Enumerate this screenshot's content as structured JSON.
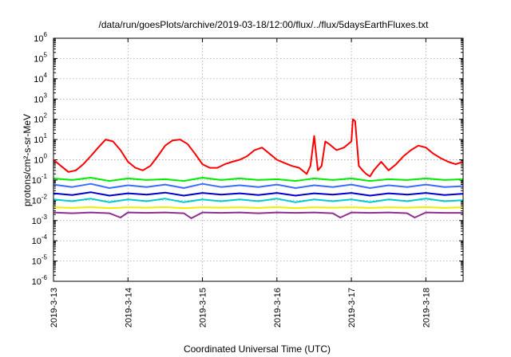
{
  "chart_data": {
    "type": "line",
    "title": "/data/run/goesPlots/archive/2019-03-18/12:00/flux/../flux/5daysEarthFluxes.txt",
    "xlabel": "Coordinated Universal Time (UTC)",
    "ylabel": "protons/cm²-s-sr-MeV",
    "yscale": "log",
    "ylim": [
      1e-06,
      1000000.0
    ],
    "xlim": [
      0,
      5.5
    ],
    "x_ticks": [
      {
        "x": 0,
        "label": "2019-3-13"
      },
      {
        "x": 1,
        "label": "2019-3-14"
      },
      {
        "x": 2,
        "label": "2019-3-15"
      },
      {
        "x": 3,
        "label": "2019-3-16"
      },
      {
        "x": 4,
        "label": "2019-3-17"
      },
      {
        "x": 5,
        "label": "2019-3-18"
      }
    ],
    "y_ticks": [
      {
        "exp": "-6"
      },
      {
        "exp": "-5"
      },
      {
        "exp": "-4"
      },
      {
        "exp": "-3"
      },
      {
        "exp": "-2"
      },
      {
        "exp": "-1"
      },
      {
        "exp": "0"
      },
      {
        "exp": "1"
      },
      {
        "exp": "2"
      },
      {
        "exp": "3"
      },
      {
        "exp": "4"
      },
      {
        "exp": "5"
      },
      {
        "exp": "6"
      }
    ],
    "y_tick_base": "10",
    "grid": true,
    "series": [
      {
        "color": "#ff0000",
        "x": [
          0,
          0.1,
          0.2,
          0.3,
          0.4,
          0.5,
          0.6,
          0.7,
          0.8,
          0.9,
          1.0,
          1.1,
          1.2,
          1.3,
          1.4,
          1.5,
          1.6,
          1.7,
          1.8,
          1.9,
          2.0,
          2.1,
          2.2,
          2.3,
          2.4,
          2.5,
          2.6,
          2.7,
          2.8,
          2.9,
          3.0,
          3.1,
          3.2,
          3.3,
          3.4,
          3.45,
          3.5,
          3.55,
          3.6,
          3.65,
          3.7,
          3.8,
          3.9,
          4.0,
          4.02,
          4.05,
          4.1,
          4.15,
          4.2,
          4.25,
          4.3,
          4.4,
          4.5,
          4.6,
          4.7,
          4.8,
          4.9,
          5.0,
          5.1,
          5.2,
          5.3,
          5.4,
          5.5
        ],
        "y": [
          1.0,
          0.5,
          0.25,
          0.3,
          0.6,
          1.5,
          4,
          10,
          8,
          3,
          0.8,
          0.4,
          0.3,
          0.5,
          1.5,
          5,
          9,
          10,
          6,
          2,
          0.6,
          0.4,
          0.4,
          0.6,
          0.8,
          1,
          1.5,
          3,
          4,
          2,
          1,
          0.7,
          0.5,
          0.4,
          0.2,
          0.5,
          15,
          0.3,
          0.5,
          8,
          6,
          3,
          4,
          8,
          100,
          80,
          0.5,
          0.3,
          0.2,
          0.15,
          0.3,
          0.8,
          0.3,
          0.6,
          1.5,
          3,
          5,
          4,
          2,
          1.2,
          0.8,
          0.6,
          0.8
        ]
      },
      {
        "color": "#00ee00",
        "x": [
          0,
          0.25,
          0.5,
          0.75,
          1.0,
          1.25,
          1.5,
          1.75,
          2.0,
          2.25,
          2.5,
          2.75,
          3.0,
          3.25,
          3.5,
          3.75,
          4.0,
          4.25,
          4.5,
          4.75,
          5.0,
          5.25,
          5.5
        ],
        "y": [
          0.12,
          0.1,
          0.13,
          0.09,
          0.12,
          0.1,
          0.11,
          0.09,
          0.13,
          0.1,
          0.12,
          0.1,
          0.11,
          0.09,
          0.12,
          0.1,
          0.12,
          0.09,
          0.11,
          0.1,
          0.12,
          0.1,
          0.11
        ]
      },
      {
        "color": "#3a6dff",
        "x": [
          0,
          0.25,
          0.5,
          0.75,
          1.0,
          1.25,
          1.5,
          1.75,
          2.0,
          2.25,
          2.5,
          2.75,
          3.0,
          3.25,
          3.5,
          3.75,
          4.0,
          4.25,
          4.5,
          4.75,
          5.0,
          5.25,
          5.5
        ],
        "y": [
          0.06,
          0.045,
          0.065,
          0.04,
          0.055,
          0.045,
          0.06,
          0.04,
          0.065,
          0.045,
          0.055,
          0.045,
          0.06,
          0.04,
          0.055,
          0.045,
          0.06,
          0.04,
          0.055,
          0.045,
          0.06,
          0.045,
          0.05
        ]
      },
      {
        "color": "#0000cc",
        "x": [
          0,
          0.25,
          0.5,
          0.75,
          1.0,
          1.25,
          1.5,
          1.75,
          2.0,
          2.25,
          2.5,
          2.75,
          3.0,
          3.25,
          3.5,
          3.75,
          4.0,
          4.25,
          4.5,
          4.75,
          5.0,
          5.25,
          5.5
        ],
        "y": [
          0.022,
          0.018,
          0.025,
          0.017,
          0.022,
          0.019,
          0.024,
          0.017,
          0.023,
          0.019,
          0.022,
          0.018,
          0.023,
          0.017,
          0.022,
          0.019,
          0.023,
          0.017,
          0.022,
          0.019,
          0.023,
          0.018,
          0.021
        ]
      },
      {
        "color": "#00cccc",
        "x": [
          0,
          0.25,
          0.5,
          0.75,
          1.0,
          1.25,
          1.5,
          1.75,
          2.0,
          2.25,
          2.5,
          2.75,
          3.0,
          3.25,
          3.5,
          3.75,
          4.0,
          4.25,
          4.5,
          4.75,
          5.0,
          5.25,
          5.5
        ],
        "y": [
          0.011,
          0.009,
          0.012,
          0.008,
          0.011,
          0.009,
          0.012,
          0.008,
          0.011,
          0.009,
          0.011,
          0.009,
          0.012,
          0.008,
          0.011,
          0.009,
          0.011,
          0.008,
          0.011,
          0.009,
          0.012,
          0.009,
          0.01
        ]
      },
      {
        "color": "#eeee00",
        "x": [
          0,
          0.25,
          0.5,
          0.75,
          1.0,
          1.25,
          1.5,
          1.75,
          2.0,
          2.25,
          2.5,
          2.75,
          3.0,
          3.25,
          3.5,
          3.75,
          4.0,
          4.25,
          4.5,
          4.75,
          5.0,
          5.25,
          5.5
        ],
        "y": [
          0.0045,
          0.0042,
          0.0046,
          0.0041,
          0.0045,
          0.0043,
          0.0046,
          0.0041,
          0.0045,
          0.0043,
          0.0045,
          0.0042,
          0.0046,
          0.0041,
          0.0045,
          0.0043,
          0.0045,
          0.0042,
          0.0045,
          0.0043,
          0.0046,
          0.0042,
          0.0045
        ]
      },
      {
        "color": "#8e2f8e",
        "x": [
          0,
          0.25,
          0.5,
          0.75,
          0.9,
          1.0,
          1.25,
          1.5,
          1.75,
          1.85,
          2.0,
          2.25,
          2.5,
          2.75,
          3.0,
          3.25,
          3.5,
          3.75,
          3.85,
          4.0,
          4.25,
          4.5,
          4.75,
          4.85,
          5.0,
          5.25,
          5.5
        ],
        "y": [
          0.0025,
          0.0023,
          0.0025,
          0.0023,
          0.0014,
          0.0025,
          0.0024,
          0.0025,
          0.0023,
          0.0013,
          0.0025,
          0.0024,
          0.0025,
          0.0023,
          0.0025,
          0.0024,
          0.0025,
          0.0023,
          0.0014,
          0.0025,
          0.0024,
          0.0025,
          0.0023,
          0.0014,
          0.0025,
          0.0024,
          0.0024
        ]
      }
    ]
  }
}
